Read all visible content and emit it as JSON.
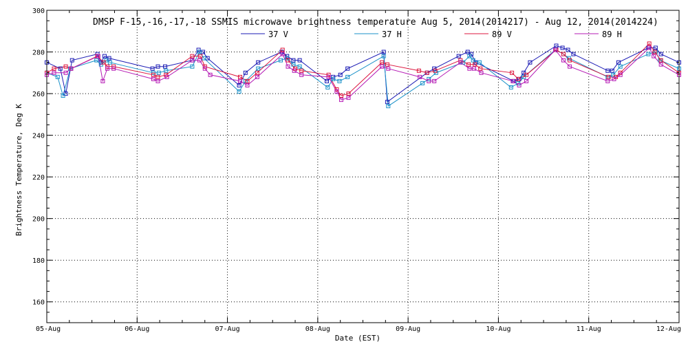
{
  "chart_data": {
    "type": "line",
    "title": "DMSP F-15,-16,-17,-18 SSMIS microwave brightness temperature Aug  5, 2014(2014217) - Aug 12, 2014(2014224)",
    "xlabel": "Date (EST)",
    "ylabel": "Brightness Temperature, Deg K",
    "xlim": [
      5,
      12
    ],
    "ylim": [
      150,
      300
    ],
    "x_ticks": [
      {
        "value": 5,
        "label": "05-Aug"
      },
      {
        "value": 6,
        "label": "06-Aug"
      },
      {
        "value": 7,
        "label": "07-Aug"
      },
      {
        "value": 8,
        "label": "08-Aug"
      },
      {
        "value": 9,
        "label": "09-Aug"
      },
      {
        "value": 10,
        "label": "10-Aug"
      },
      {
        "value": 11,
        "label": "11-Aug"
      },
      {
        "value": 12,
        "label": "12-Aug"
      }
    ],
    "y_ticks": [
      160,
      180,
      200,
      220,
      240,
      260,
      280,
      300
    ],
    "grid": true,
    "legend_position": "top",
    "series": [
      {
        "name": "37 V",
        "color": "#1a1ab4",
        "x": [
          5.0,
          5.15,
          5.21,
          5.28,
          5.56,
          5.6,
          5.64,
          5.69,
          6.17,
          6.23,
          6.31,
          6.61,
          6.68,
          6.73,
          6.78,
          7.13,
          7.2,
          7.34,
          7.6,
          7.66,
          7.73,
          7.8,
          8.1,
          8.17,
          8.25,
          8.33,
          8.73,
          8.77,
          9.21,
          9.29,
          9.56,
          9.66,
          9.7,
          9.75,
          10.17,
          10.23,
          10.28,
          10.35,
          10.64,
          10.71,
          10.77,
          10.83,
          11.21,
          11.26,
          11.33,
          11.66,
          11.74,
          11.8,
          12.0
        ],
        "values": [
          275,
          272,
          260,
          276,
          279,
          275,
          278,
          277,
          272,
          273,
          273,
          276,
          281,
          280,
          277,
          264,
          270,
          275,
          280,
          278,
          276,
          276,
          266,
          268,
          269,
          272,
          280,
          256,
          270,
          272,
          278,
          280,
          279,
          275,
          266,
          267,
          270,
          275,
          283,
          282,
          281,
          279,
          271,
          271,
          275,
          282,
          282,
          279,
          275
        ]
      },
      {
        "name": "37 H",
        "color": "#1890c8",
        "x": [
          5.0,
          5.12,
          5.18,
          5.26,
          5.55,
          5.6,
          5.66,
          5.7,
          6.18,
          6.24,
          6.32,
          6.61,
          6.69,
          6.74,
          7.13,
          7.2,
          7.34,
          7.59,
          7.66,
          7.73,
          7.8,
          8.11,
          8.17,
          8.24,
          8.33,
          8.73,
          8.78,
          9.16,
          9.23,
          9.31,
          9.61,
          9.68,
          9.72,
          9.79,
          10.14,
          10.22,
          10.28,
          10.63,
          10.72,
          10.78,
          11.21,
          11.27,
          11.35,
          11.66,
          11.74,
          11.79,
          12.0
        ],
        "values": [
          270,
          268,
          259,
          272,
          276,
          274,
          276,
          275,
          270,
          270,
          271,
          273,
          280,
          277,
          261,
          266,
          272,
          276,
          277,
          274,
          273,
          263,
          267,
          266,
          268,
          278,
          254,
          265,
          267,
          270,
          275,
          278,
          276,
          275,
          263,
          265,
          268,
          281,
          279,
          277,
          268,
          269,
          273,
          279,
          280,
          276,
          272
        ]
      },
      {
        "name": "89 V",
        "color": "#dc143c",
        "x": [
          5.0,
          5.08,
          5.21,
          5.27,
          5.56,
          5.63,
          5.67,
          5.74,
          6.18,
          6.23,
          6.32,
          6.61,
          6.7,
          6.75,
          7.14,
          7.22,
          7.33,
          7.61,
          7.67,
          7.75,
          7.82,
          8.12,
          8.21,
          8.26,
          8.34,
          8.71,
          8.77,
          9.12,
          9.21,
          9.3,
          9.58,
          9.67,
          9.74,
          9.8,
          10.15,
          10.22,
          10.31,
          10.64,
          10.72,
          10.79,
          11.22,
          11.3,
          11.35,
          11.67,
          11.73,
          11.8,
          12.0
        ],
        "values": [
          270,
          272,
          273,
          272,
          278,
          275,
          273,
          273,
          269,
          268,
          269,
          278,
          278,
          273,
          268,
          266,
          270,
          281,
          276,
          272,
          271,
          269,
          262,
          259,
          260,
          275,
          274,
          271,
          270,
          271,
          276,
          274,
          274,
          272,
          270,
          267,
          269,
          281,
          279,
          276,
          268,
          268,
          270,
          284,
          280,
          276,
          270
        ]
      },
      {
        "name": "89 H",
        "color": "#b418b4",
        "x": [
          5.0,
          5.08,
          5.21,
          5.27,
          5.57,
          5.62,
          5.67,
          5.74,
          6.18,
          6.23,
          6.33,
          6.61,
          6.69,
          6.75,
          6.81,
          7.14,
          7.22,
          7.33,
          7.61,
          7.67,
          7.74,
          7.82,
          8.12,
          8.21,
          8.26,
          8.34,
          8.71,
          8.78,
          9.13,
          9.23,
          9.29,
          9.58,
          9.68,
          9.73,
          9.81,
          10.16,
          10.23,
          10.31,
          10.63,
          10.72,
          10.79,
          11.21,
          11.28,
          11.35,
          11.67,
          11.72,
          11.8,
          12.0
        ],
        "values": [
          269,
          270,
          270,
          272,
          278,
          266,
          272,
          272,
          267,
          266,
          268,
          276,
          276,
          272,
          269,
          266,
          264,
          268,
          279,
          273,
          271,
          269,
          268,
          261,
          257,
          258,
          273,
          272,
          268,
          266,
          266,
          275,
          272,
          272,
          270,
          266,
          264,
          266,
          281,
          276,
          273,
          266,
          267,
          269,
          282,
          278,
          274,
          269
        ]
      }
    ]
  }
}
